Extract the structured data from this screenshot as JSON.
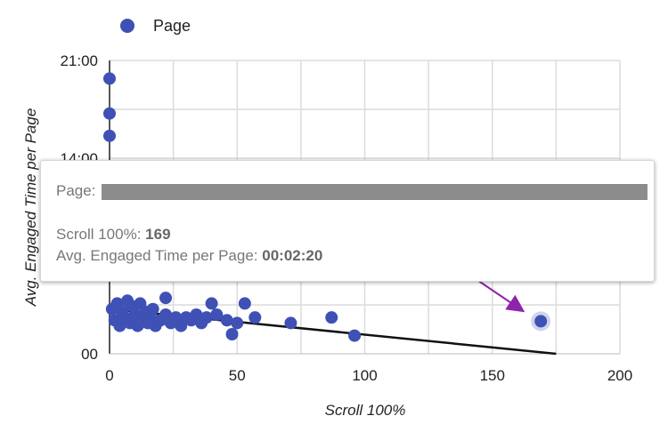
{
  "legend": {
    "label": "Page",
    "color": "#3f51b5"
  },
  "chart_data": {
    "type": "scatter",
    "xlabel": "Scroll 100%",
    "ylabel": "Avg. Engaged Time per Page",
    "xlim": [
      0,
      200
    ],
    "ylim_minutes": [
      0,
      21
    ],
    "x_ticks": [
      "0",
      "50",
      "100",
      "150",
      "200"
    ],
    "y_ticks": [
      "00",
      "14:00",
      "21:00"
    ],
    "grid": true,
    "legend_position": "top-left",
    "series": [
      {
        "name": "Page",
        "color": "#3f51b5",
        "points": [
          {
            "x": 0,
            "y": 19.7
          },
          {
            "x": 0,
            "y": 17.2
          },
          {
            "x": 0,
            "y": 15.6
          },
          {
            "x": 1,
            "y": 3.2
          },
          {
            "x": 2,
            "y": 2.4
          },
          {
            "x": 3,
            "y": 3.6
          },
          {
            "x": 4,
            "y": 2.0
          },
          {
            "x": 5,
            "y": 3.0
          },
          {
            "x": 6,
            "y": 2.6
          },
          {
            "x": 7,
            "y": 3.8
          },
          {
            "x": 8,
            "y": 2.2
          },
          {
            "x": 9,
            "y": 3.4
          },
          {
            "x": 10,
            "y": 2.8
          },
          {
            "x": 11,
            "y": 2.0
          },
          {
            "x": 12,
            "y": 3.6
          },
          {
            "x": 13,
            "y": 2.4
          },
          {
            "x": 14,
            "y": 3.0
          },
          {
            "x": 15,
            "y": 2.2
          },
          {
            "x": 16,
            "y": 2.6
          },
          {
            "x": 17,
            "y": 3.2
          },
          {
            "x": 18,
            "y": 2.0
          },
          {
            "x": 20,
            "y": 2.4
          },
          {
            "x": 22,
            "y": 2.8
          },
          {
            "x": 22,
            "y": 4.0
          },
          {
            "x": 24,
            "y": 2.2
          },
          {
            "x": 26,
            "y": 2.6
          },
          {
            "x": 28,
            "y": 2.0
          },
          {
            "x": 30,
            "y": 2.6
          },
          {
            "x": 32,
            "y": 2.4
          },
          {
            "x": 34,
            "y": 2.8
          },
          {
            "x": 36,
            "y": 2.2
          },
          {
            "x": 38,
            "y": 2.6
          },
          {
            "x": 40,
            "y": 3.6
          },
          {
            "x": 42,
            "y": 2.8
          },
          {
            "x": 46,
            "y": 2.4
          },
          {
            "x": 48,
            "y": 1.4
          },
          {
            "x": 50,
            "y": 2.2
          },
          {
            "x": 53,
            "y": 3.6
          },
          {
            "x": 57,
            "y": 2.6
          },
          {
            "x": 71,
            "y": 2.2
          },
          {
            "x": 87,
            "y": 2.6
          },
          {
            "x": 96,
            "y": 1.3
          },
          {
            "x": 169,
            "y": 2.33
          }
        ]
      }
    ],
    "trendline": {
      "x": [
        0,
        175
      ],
      "y": [
        3.2,
        0
      ]
    },
    "highlighted_point": {
      "x": 169,
      "y": 2.33
    }
  },
  "tooltip": {
    "page_label": "Page:",
    "scroll_label": "Scroll 100%:",
    "scroll_value": "169",
    "time_label": "Avg. Engaged Time per Page:",
    "time_value": "00:02:20"
  },
  "annotation": {
    "arrow_color": "#8e24aa"
  }
}
